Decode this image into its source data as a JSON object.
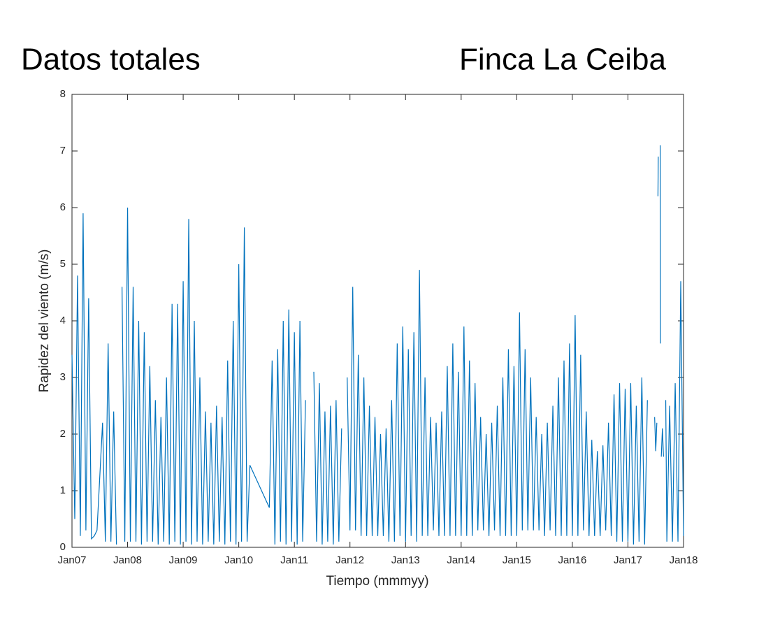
{
  "chart_data": {
    "type": "line",
    "title": "Datos totales",
    "subtitle": "Finca La Ceiba",
    "x_label": "Tiempo (mmmyy)",
    "y_label": "Rapidez del viento (m/s)",
    "color": "#0072bd",
    "xlim": [
      2007,
      2018
    ],
    "ylim": [
      0,
      8
    ],
    "yticks": [
      0,
      1,
      2,
      3,
      4,
      5,
      6,
      7,
      8
    ],
    "xticks": [
      {
        "value": 2007,
        "label": "Jan07"
      },
      {
        "value": 2008,
        "label": "Jan08"
      },
      {
        "value": 2009,
        "label": "Jan09"
      },
      {
        "value": 2010,
        "label": "Jan10"
      },
      {
        "value": 2011,
        "label": "Jan11"
      },
      {
        "value": 2012,
        "label": "Jan12"
      },
      {
        "value": 2013,
        "label": "Jan13"
      },
      {
        "value": 2014,
        "label": "Jan14"
      },
      {
        "value": 2015,
        "label": "Jan15"
      },
      {
        "value": 2016,
        "label": "Jan16"
      },
      {
        "value": 2017,
        "label": "Jan17"
      },
      {
        "value": 2018,
        "label": "Jan18"
      }
    ],
    "x": [
      2007.0,
      2007.05,
      2007.1,
      2007.15,
      2007.2,
      2007.25,
      2007.3,
      2007.35,
      2007.4,
      2007.45,
      2007.55,
      2007.6,
      2007.65,
      2007.7,
      2007.75,
      2007.8,
      2007.85,
      2007.9,
      2007.95,
      2008.0,
      2008.05,
      2008.1,
      2008.15,
      2008.2,
      2008.25,
      2008.3,
      2008.35,
      2008.4,
      2008.45,
      2008.5,
      2008.55,
      2008.6,
      2008.65,
      2008.7,
      2008.75,
      2008.8,
      2008.85,
      2008.9,
      2008.95,
      2009.0,
      2009.05,
      2009.1,
      2009.15,
      2009.2,
      2009.25,
      2009.3,
      2009.35,
      2009.4,
      2009.45,
      2009.5,
      2009.55,
      2009.6,
      2009.65,
      2009.7,
      2009.75,
      2009.8,
      2009.85,
      2009.9,
      2009.95,
      2010.0,
      2010.05,
      2010.1,
      2010.15,
      2010.2,
      2010.55,
      2010.6,
      2010.65,
      2010.7,
      2010.75,
      2010.8,
      2010.85,
      2010.9,
      2010.95,
      2011.0,
      2011.05,
      2011.1,
      2011.15,
      2011.2,
      2011.25,
      2011.35,
      2011.4,
      2011.45,
      2011.5,
      2011.55,
      2011.6,
      2011.65,
      2011.7,
      2011.75,
      2011.8,
      2011.85,
      2011.9,
      2011.95,
      2012.0,
      2012.05,
      2012.1,
      2012.15,
      2012.2,
      2012.25,
      2012.3,
      2012.35,
      2012.4,
      2012.45,
      2012.5,
      2012.55,
      2012.6,
      2012.65,
      2012.7,
      2012.75,
      2012.8,
      2012.85,
      2012.9,
      2012.95,
      2013.0,
      2013.05,
      2013.1,
      2013.15,
      2013.2,
      2013.25,
      2013.3,
      2013.35,
      2013.4,
      2013.45,
      2013.5,
      2013.55,
      2013.6,
      2013.65,
      2013.7,
      2013.75,
      2013.8,
      2013.85,
      2013.9,
      2013.95,
      2014.0,
      2014.05,
      2014.1,
      2014.15,
      2014.2,
      2014.25,
      2014.3,
      2014.35,
      2014.4,
      2014.45,
      2014.5,
      2014.55,
      2014.6,
      2014.65,
      2014.7,
      2014.75,
      2014.8,
      2014.85,
      2014.9,
      2014.95,
      2015.0,
      2015.05,
      2015.1,
      2015.15,
      2015.2,
      2015.25,
      2015.3,
      2015.35,
      2015.4,
      2015.45,
      2015.5,
      2015.55,
      2015.6,
      2015.65,
      2015.7,
      2015.75,
      2015.8,
      2015.85,
      2015.9,
      2015.95,
      2016.0,
      2016.05,
      2016.1,
      2016.15,
      2016.2,
      2016.25,
      2016.3,
      2016.35,
      2016.4,
      2016.45,
      2016.5,
      2016.55,
      2016.6,
      2016.65,
      2016.7,
      2016.75,
      2016.8,
      2016.85,
      2016.9,
      2016.95,
      2017.0,
      2017.05,
      2017.1,
      2017.15,
      2017.2,
      2017.25,
      2017.3,
      2017.35,
      2017.4,
      2017.48,
      2017.5,
      2017.52,
      2017.53,
      2017.54,
      2017.545,
      2017.55,
      2017.58,
      2017.585,
      2017.59,
      2017.6,
      2017.62,
      2017.64,
      2017.66,
      2017.68,
      2017.7,
      2017.75,
      2017.8,
      2017.85,
      2017.9,
      2017.95,
      2018.0
    ],
    "values": [
      3.4,
      0.5,
      4.8,
      0.2,
      5.9,
      0.3,
      4.4,
      0.15,
      0.2,
      0.3,
      2.2,
      0.1,
      3.6,
      0.1,
      2.4,
      0.05,
      null,
      4.6,
      0.1,
      6.0,
      0.1,
      4.6,
      0.1,
      4.0,
      0.05,
      3.8,
      0.1,
      3.2,
      0.1,
      2.6,
      0.05,
      2.3,
      0.1,
      3.0,
      0.05,
      4.3,
      0.1,
      4.3,
      0.05,
      4.7,
      0.1,
      5.8,
      0.05,
      4.0,
      0.1,
      3.0,
      0.05,
      2.4,
      0.1,
      2.2,
      0.05,
      2.5,
      0.1,
      2.3,
      0.05,
      3.3,
      0.1,
      4.0,
      0.05,
      5.0,
      0.1,
      5.65,
      0.1,
      1.45,
      0.7,
      3.3,
      0.05,
      3.5,
      0.1,
      4.0,
      0.05,
      4.2,
      0.1,
      3.8,
      0.05,
      4.0,
      0.1,
      2.6,
      null,
      3.1,
      0.1,
      2.9,
      0.05,
      2.4,
      0.1,
      2.5,
      0.05,
      2.6,
      0.1,
      2.1,
      null,
      3.0,
      0.3,
      4.6,
      0.3,
      3.4,
      0.2,
      3.0,
      0.2,
      2.5,
      0.2,
      2.3,
      0.2,
      2.0,
      0.2,
      2.1,
      0.1,
      2.6,
      0.1,
      3.6,
      0.2,
      3.9,
      0.1,
      3.5,
      0.2,
      3.8,
      0.1,
      4.9,
      0.2,
      3.0,
      0.2,
      2.3,
      0.3,
      2.2,
      0.2,
      2.4,
      0.2,
      3.2,
      0.2,
      3.6,
      0.2,
      3.1,
      0.2,
      3.9,
      0.2,
      3.3,
      0.2,
      2.9,
      0.3,
      2.3,
      0.3,
      2.0,
      0.2,
      2.2,
      0.3,
      2.5,
      0.2,
      3.0,
      0.2,
      3.5,
      0.2,
      3.2,
      0.2,
      4.15,
      0.3,
      3.5,
      0.3,
      3.0,
      0.3,
      2.3,
      0.3,
      2.0,
      0.2,
      2.2,
      0.3,
      2.5,
      0.2,
      3.0,
      0.2,
      3.3,
      0.2,
      3.6,
      0.2,
      4.1,
      0.2,
      3.4,
      0.3,
      2.4,
      0.2,
      1.9,
      0.2,
      1.7,
      0.2,
      1.8,
      0.3,
      2.2,
      0.2,
      2.7,
      0.1,
      2.9,
      0.1,
      2.8,
      0.1,
      2.9,
      0.05,
      2.5,
      0.1,
      3.0,
      0.05,
      2.6,
      null,
      2.3,
      1.7,
      2.2,
      null,
      6.2,
      6.9,
      null,
      7.1,
      3.6,
      null,
      1.6,
      2.1,
      1.6,
      null,
      2.6,
      0.1,
      2.5,
      0.1,
      2.9,
      0.1,
      4.7,
      0.2
    ]
  }
}
